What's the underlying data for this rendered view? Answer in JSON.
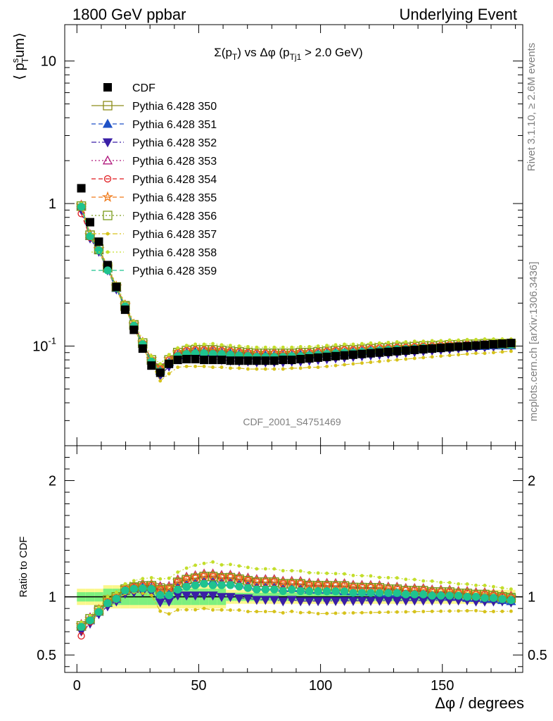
{
  "header": {
    "left_title": "1800 GeV ppbar",
    "right_title": "Underlying Event",
    "plot_title": "Σ(p_T) vs Δφ (p_Tj1 > 2.0 GeV)",
    "watermark": "CDF_2001_S4751469"
  },
  "side_labels": {
    "rivet": "Rivet 3.1.10, ≥ 2.6M events",
    "mcplots": "mcplots.cern.ch [arXiv:1306.3436]"
  },
  "chart_data": [
    {
      "type": "scatter",
      "scale": "log",
      "ylabel": "⟨ p_T^sum ⟩",
      "xlim": [
        -5,
        183
      ],
      "ylim": [
        0.02,
        18
      ],
      "yticks": [
        {
          "value": 10,
          "label": "10"
        },
        {
          "value": 1,
          "label": "1"
        },
        {
          "value": 0.1,
          "label": "10^-1"
        }
      ],
      "x": [
        1.8,
        5.4,
        9.0,
        12.6,
        16.2,
        19.8,
        23.4,
        27.0,
        30.6,
        34.2,
        37.8,
        41.4,
        45.0,
        48.6,
        52.2,
        55.8,
        59.4,
        63.0,
        66.6,
        70.2,
        73.8,
        77.4,
        81.0,
        84.6,
        88.2,
        91.8,
        95.4,
        99.0,
        102.6,
        106.2,
        109.8,
        113.4,
        117.0,
        120.6,
        124.2,
        127.8,
        131.4,
        135.0,
        138.6,
        142.2,
        145.8,
        149.4,
        153.0,
        156.6,
        160.2,
        163.8,
        167.4,
        171.0,
        174.6,
        178.2
      ],
      "series": [
        {
          "name": "CDF",
          "color": "#000000",
          "marker": "square-filled",
          "line": "none",
          "values": [
            1.28,
            0.74,
            0.54,
            0.37,
            0.26,
            0.18,
            0.13,
            0.096,
            0.073,
            0.065,
            0.075,
            0.08,
            0.081,
            0.081,
            0.08,
            0.08,
            0.08,
            0.079,
            0.079,
            0.079,
            0.079,
            0.079,
            0.079,
            0.08,
            0.08,
            0.081,
            0.082,
            0.083,
            0.084,
            0.085,
            0.086,
            0.087,
            0.088,
            0.089,
            0.09,
            0.091,
            0.092,
            0.093,
            0.094,
            0.095,
            0.096,
            0.097,
            0.098,
            0.099,
            0.1,
            0.101,
            0.102,
            0.103,
            0.104,
            0.105
          ]
        },
        {
          "name": "Pythia 6.428 350",
          "color": "#8d8d1a",
          "marker": "square-open",
          "line": "solid",
          "values": [
            0.96,
            0.6,
            0.48,
            0.36,
            0.26,
            0.19,
            0.14,
            0.105,
            0.08,
            0.07,
            0.08,
            0.09,
            0.093,
            0.094,
            0.094,
            0.094,
            0.093,
            0.092,
            0.091,
            0.09,
            0.089,
            0.089,
            0.089,
            0.089,
            0.089,
            0.09,
            0.09,
            0.091,
            0.092,
            0.093,
            0.094,
            0.094,
            0.095,
            0.096,
            0.097,
            0.097,
            0.098,
            0.098,
            0.099,
            0.1,
            0.1,
            0.101,
            0.102,
            0.102,
            0.103,
            0.103,
            0.104,
            0.104,
            0.104,
            0.104
          ]
        },
        {
          "name": "Pythia 6.428 351",
          "color": "#1f52c6",
          "marker": "triangle-up-filled",
          "line": "dashed",
          "values": [
            0.95,
            0.59,
            0.47,
            0.35,
            0.255,
            0.19,
            0.14,
            0.104,
            0.079,
            0.067,
            0.077,
            0.087,
            0.09,
            0.091,
            0.091,
            0.091,
            0.09,
            0.089,
            0.088,
            0.087,
            0.086,
            0.086,
            0.086,
            0.086,
            0.086,
            0.087,
            0.087,
            0.088,
            0.089,
            0.09,
            0.09,
            0.091,
            0.092,
            0.093,
            0.093,
            0.094,
            0.095,
            0.095,
            0.096,
            0.097,
            0.097,
            0.098,
            0.098,
            0.099,
            0.099,
            0.1,
            0.1,
            0.101,
            0.101,
            0.101
          ]
        },
        {
          "name": "Pythia 6.428 352",
          "color": "#3a1fa6",
          "marker": "triangle-down-filled",
          "line": "dashdot",
          "values": [
            0.9,
            0.57,
            0.46,
            0.34,
            0.25,
            0.185,
            0.135,
            0.1,
            0.076,
            0.062,
            0.072,
            0.081,
            0.082,
            0.082,
            0.081,
            0.081,
            0.08,
            0.079,
            0.078,
            0.078,
            0.077,
            0.077,
            0.077,
            0.077,
            0.078,
            0.078,
            0.079,
            0.08,
            0.081,
            0.082,
            0.083,
            0.084,
            0.085,
            0.086,
            0.087,
            0.088,
            0.089,
            0.09,
            0.091,
            0.092,
            0.093,
            0.094,
            0.095,
            0.096,
            0.097,
            0.097,
            0.098,
            0.099,
            0.1,
            0.1
          ]
        },
        {
          "name": "Pythia 6.428 353",
          "color": "#b0187c",
          "marker": "triangle-up-open",
          "line": "dotted",
          "values": [
            0.98,
            0.61,
            0.48,
            0.36,
            0.26,
            0.195,
            0.143,
            0.107,
            0.081,
            0.071,
            0.082,
            0.092,
            0.095,
            0.096,
            0.096,
            0.096,
            0.095,
            0.094,
            0.093,
            0.092,
            0.091,
            0.091,
            0.091,
            0.091,
            0.091,
            0.092,
            0.092,
            0.093,
            0.094,
            0.095,
            0.096,
            0.096,
            0.097,
            0.098,
            0.099,
            0.099,
            0.1,
            0.1,
            0.101,
            0.102,
            0.102,
            0.103,
            0.104,
            0.104,
            0.105,
            0.105,
            0.106,
            0.106,
            0.106,
            0.106
          ]
        },
        {
          "name": "Pythia 6.428 354",
          "color": "#e0191d",
          "marker": "circle-open",
          "line": "dashed",
          "values": [
            0.85,
            0.58,
            0.47,
            0.355,
            0.258,
            0.192,
            0.141,
            0.105,
            0.08,
            0.069,
            0.08,
            0.09,
            0.093,
            0.094,
            0.094,
            0.094,
            0.093,
            0.092,
            0.091,
            0.09,
            0.089,
            0.089,
            0.089,
            0.089,
            0.089,
            0.09,
            0.09,
            0.091,
            0.092,
            0.093,
            0.094,
            0.094,
            0.095,
            0.096,
            0.097,
            0.097,
            0.098,
            0.098,
            0.099,
            0.1,
            0.1,
            0.101,
            0.102,
            0.102,
            0.103,
            0.103,
            0.104,
            0.104,
            0.104,
            0.104
          ]
        },
        {
          "name": "Pythia 6.428 355",
          "color": "#f07a1a",
          "marker": "star-open",
          "line": "dashed",
          "values": [
            0.97,
            0.6,
            0.48,
            0.36,
            0.262,
            0.194,
            0.142,
            0.106,
            0.081,
            0.07,
            0.081,
            0.091,
            0.094,
            0.095,
            0.095,
            0.095,
            0.094,
            0.093,
            0.092,
            0.091,
            0.09,
            0.09,
            0.09,
            0.09,
            0.09,
            0.091,
            0.091,
            0.092,
            0.093,
            0.094,
            0.095,
            0.095,
            0.096,
            0.097,
            0.098,
            0.098,
            0.099,
            0.099,
            0.1,
            0.101,
            0.101,
            0.102,
            0.103,
            0.103,
            0.104,
            0.104,
            0.105,
            0.105,
            0.105,
            0.105
          ]
        },
        {
          "name": "Pythia 6.428 356",
          "color": "#7a9a1a",
          "marker": "square-open",
          "line": "dotted",
          "values": [
            0.96,
            0.6,
            0.475,
            0.355,
            0.26,
            0.192,
            0.141,
            0.105,
            0.08,
            0.069,
            0.08,
            0.09,
            0.093,
            0.094,
            0.094,
            0.094,
            0.093,
            0.092,
            0.091,
            0.09,
            0.089,
            0.089,
            0.089,
            0.089,
            0.089,
            0.09,
            0.09,
            0.091,
            0.092,
            0.093,
            0.094,
            0.094,
            0.095,
            0.096,
            0.097,
            0.097,
            0.098,
            0.098,
            0.099,
            0.1,
            0.1,
            0.101,
            0.102,
            0.102,
            0.103,
            0.103,
            0.104,
            0.104,
            0.104,
            0.104
          ]
        },
        {
          "name": "Pythia 6.428 357",
          "color": "#d6c21c",
          "marker": "dot",
          "line": "dashdot",
          "values": [
            0.93,
            0.58,
            0.46,
            0.345,
            0.25,
            0.185,
            0.135,
            0.099,
            0.074,
            0.057,
            0.064,
            0.071,
            0.072,
            0.072,
            0.072,
            0.071,
            0.071,
            0.07,
            0.07,
            0.069,
            0.069,
            0.069,
            0.069,
            0.069,
            0.07,
            0.07,
            0.071,
            0.071,
            0.072,
            0.073,
            0.074,
            0.075,
            0.076,
            0.077,
            0.078,
            0.079,
            0.08,
            0.081,
            0.082,
            0.083,
            0.084,
            0.085,
            0.086,
            0.087,
            0.088,
            0.089,
            0.089,
            0.09,
            0.091,
            0.092
          ]
        },
        {
          "name": "Pythia 6.428 358",
          "color": "#c3de2b",
          "marker": "dot",
          "line": "dotted",
          "values": [
            1.0,
            0.62,
            0.49,
            0.37,
            0.27,
            0.2,
            0.148,
            0.111,
            0.085,
            0.075,
            0.087,
            0.097,
            0.101,
            0.103,
            0.103,
            0.104,
            0.102,
            0.101,
            0.1,
            0.099,
            0.098,
            0.098,
            0.098,
            0.098,
            0.098,
            0.099,
            0.099,
            0.1,
            0.101,
            0.102,
            0.103,
            0.103,
            0.104,
            0.105,
            0.105,
            0.106,
            0.107,
            0.107,
            0.108,
            0.108,
            0.109,
            0.109,
            0.11,
            0.11,
            0.111,
            0.111,
            0.112,
            0.112,
            0.112,
            0.112
          ]
        },
        {
          "name": "Pythia 6.428 359",
          "color": "#1fc38f",
          "marker": "circle-filled",
          "line": "dashed",
          "values": [
            0.95,
            0.59,
            0.47,
            0.35,
            0.256,
            0.19,
            0.139,
            0.103,
            0.078,
            0.066,
            0.076,
            0.085,
            0.088,
            0.089,
            0.089,
            0.088,
            0.088,
            0.087,
            0.086,
            0.085,
            0.084,
            0.084,
            0.084,
            0.084,
            0.085,
            0.085,
            0.086,
            0.087,
            0.088,
            0.089,
            0.09,
            0.09,
            0.091,
            0.092,
            0.093,
            0.094,
            0.095,
            0.095,
            0.096,
            0.097,
            0.097,
            0.098,
            0.099,
            0.1,
            0.1,
            0.101,
            0.101,
            0.102,
            0.102,
            0.102
          ]
        }
      ]
    },
    {
      "type": "scatter",
      "ylabel": "Ratio to CDF",
      "xlabel": "Δφ / degrees",
      "xlim": [
        -5,
        183
      ],
      "ylim": [
        0.35,
        2.3
      ],
      "xticks": [
        0,
        50,
        100,
        150
      ],
      "yticks": [
        0.5,
        1,
        2
      ],
      "band_colors": {
        "inner": "#7ef07e",
        "outer": "#fbf78c"
      }
    }
  ]
}
